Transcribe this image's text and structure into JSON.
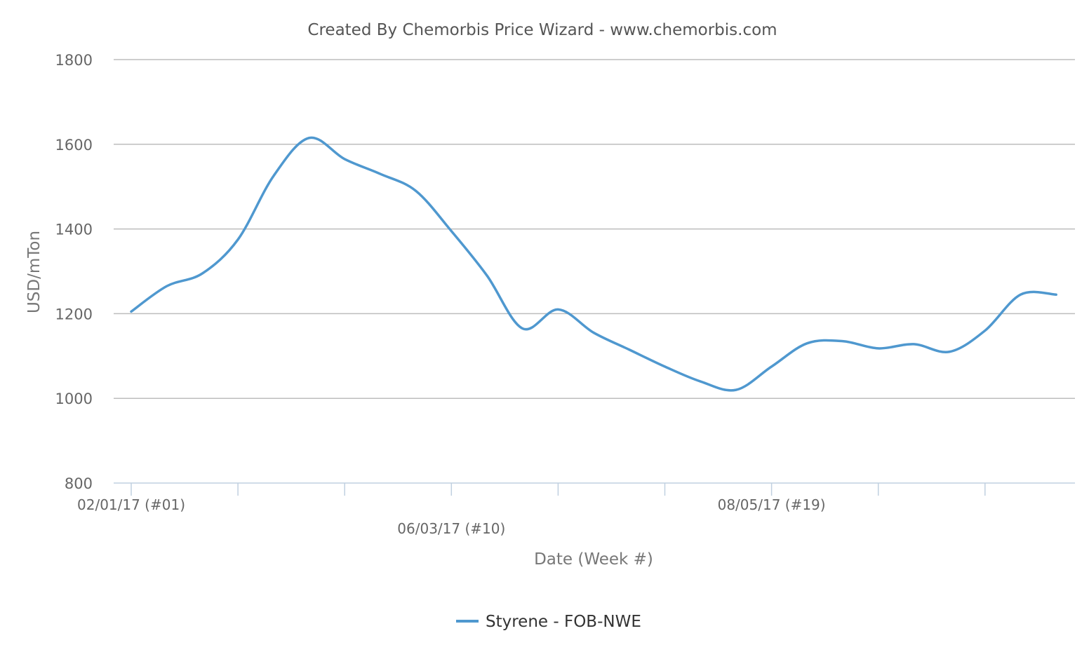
{
  "chart_data": {
    "type": "line",
    "title": "Created By Chemorbis Price Wizard - www.chemorbis.com",
    "xlabel": "Date (Week #)",
    "ylabel": "USD/mTon",
    "ylim": [
      800,
      1800
    ],
    "yticks": [
      800,
      1000,
      1200,
      1400,
      1600,
      1800
    ],
    "grid": true,
    "legend_position": "bottom-center",
    "x_start_week": 1,
    "x_end_week": 27,
    "x_tick_marks": [
      1,
      4,
      7,
      10,
      13,
      16,
      19,
      22,
      25
    ],
    "x_tick_labels": [
      {
        "week": 1,
        "label": "02/01/17 (#01)",
        "row": 0
      },
      {
        "week": 10,
        "label": "06/03/17 (#10)",
        "row": 1
      },
      {
        "week": 19,
        "label": "08/05/17 (#19)",
        "row": 0
      }
    ],
    "series": [
      {
        "name": "Styrene - FOB-NWE",
        "color": "#4f98cf",
        "x": [
          1,
          2,
          3,
          4,
          5,
          6,
          7,
          8,
          9,
          10,
          11,
          12,
          13,
          14,
          15,
          16,
          17,
          18,
          19,
          20,
          21,
          22,
          23,
          24,
          25,
          26,
          27
        ],
        "values": [
          1205,
          1265,
          1295,
          1375,
          1525,
          1615,
          1565,
          1530,
          1490,
          1395,
          1290,
          1165,
          1210,
          1155,
          1115,
          1075,
          1040,
          1020,
          1075,
          1130,
          1135,
          1118,
          1128,
          1110,
          1160,
          1245,
          1245
        ]
      }
    ]
  }
}
